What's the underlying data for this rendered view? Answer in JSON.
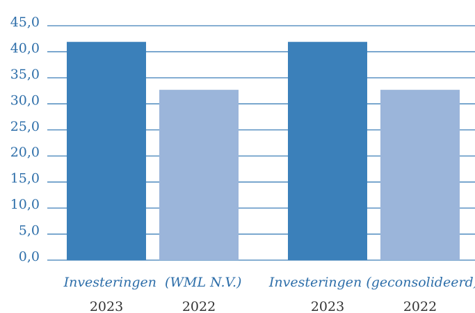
{
  "chart_data": {
    "type": "bar",
    "categories": [
      "Investeringen  (WML N.V.)",
      "Investeringen (geconsolideerd)"
    ],
    "series": [
      {
        "name": "2023",
        "color": "#3b80ba",
        "values": [
          41.9,
          41.9
        ]
      },
      {
        "name": "2022",
        "color": "#9bb5da",
        "values": [
          32.7,
          32.7
        ]
      }
    ],
    "ylim": [
      0,
      45
    ],
    "yticks": [
      {
        "value": 0,
        "label": "0,0"
      },
      {
        "value": 5,
        "label": "5,0"
      },
      {
        "value": 10,
        "label": "10,0"
      },
      {
        "value": 15,
        "label": "15,0"
      },
      {
        "value": 20,
        "label": "20,0"
      },
      {
        "value": 25,
        "label": "25,0"
      },
      {
        "value": 30,
        "label": "30,0"
      },
      {
        "value": 35,
        "label": "35,0"
      },
      {
        "value": 40,
        "label": "40,0"
      },
      {
        "value": 45,
        "label": "45,0"
      }
    ],
    "grid": true
  }
}
